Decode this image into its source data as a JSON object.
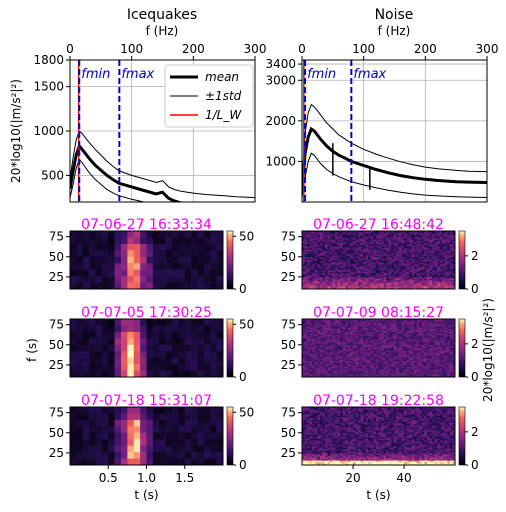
{
  "colors": {
    "mean": "#000000",
    "std": "#000000",
    "inv_lw": "#ff0000",
    "fbounds": "#0000cc",
    "timestamp": "#ff00ff",
    "grid": "#b0b0b0"
  },
  "chart_data": [
    {
      "type": "line",
      "panel": "icequakes-spectrum",
      "title": "Icequakes",
      "xlabel": "f (Hz)",
      "ylabel": "20*log10(|m/s²|²)",
      "xlim": [
        0,
        300
      ],
      "ylim": [
        200,
        1800
      ],
      "x_ticks": [
        0,
        100,
        200,
        300
      ],
      "y_ticks": [
        500,
        1000,
        1500,
        1800
      ],
      "grid": true,
      "legend_position": "top-right",
      "legend": [
        {
          "key": "mean",
          "label": "mean"
        },
        {
          "key": "std",
          "label": "±1std"
        },
        {
          "key": "inv_lw",
          "label": "1/L_W"
        }
      ],
      "fmin": 15,
      "fmin_label": "fmin",
      "fmax": 80,
      "fmax_label": "fmax",
      "inv_lw_x": 14,
      "x": [
        0,
        5,
        10,
        15,
        20,
        30,
        40,
        50,
        60,
        70,
        80,
        100,
        120,
        140,
        150,
        160,
        170,
        180,
        200,
        220,
        250,
        270,
        300
      ],
      "mean": [
        350,
        550,
        730,
        830,
        790,
        700,
        620,
        560,
        500,
        450,
        410,
        370,
        330,
        290,
        310,
        240,
        210,
        190,
        170,
        155,
        140,
        130,
        120
      ],
      "std_upper": [
        450,
        700,
        900,
        1000,
        970,
        880,
        800,
        730,
        660,
        600,
        550,
        500,
        460,
        420,
        440,
        370,
        340,
        320,
        300,
        285,
        270,
        260,
        250
      ],
      "std_lower": [
        250,
        400,
        580,
        680,
        640,
        540,
        460,
        400,
        340,
        300,
        270,
        230,
        200,
        170,
        180,
        130,
        110,
        90,
        75,
        60,
        50,
        40,
        30
      ]
    },
    {
      "type": "line",
      "panel": "noise-spectrum",
      "title": "Noise",
      "xlabel": "f (Hz)",
      "xlim": [
        0,
        300
      ],
      "ylim": [
        0,
        3500
      ],
      "x_ticks": [
        0,
        100,
        200,
        300
      ],
      "y_ticks": [
        1000,
        2000,
        3000,
        3400
      ],
      "grid": true,
      "fmin": 5,
      "fmin_label": "fmin",
      "fmax": 80,
      "fmax_label": "fmax",
      "inv_lw_x": 3,
      "x": [
        0,
        5,
        10,
        15,
        20,
        30,
        40,
        50,
        60,
        70,
        80,
        100,
        120,
        140,
        160,
        180,
        200,
        220,
        250,
        270,
        300
      ],
      "mean": [
        300,
        1200,
        1600,
        1800,
        1750,
        1550,
        1380,
        1250,
        1150,
        1080,
        1000,
        900,
        800,
        720,
        650,
        600,
        560,
        530,
        500,
        490,
        480
      ],
      "std_upper": [
        500,
        1700,
        2200,
        2400,
        2350,
        2150,
        1950,
        1800,
        1650,
        1550,
        1450,
        1300,
        1180,
        1080,
        990,
        920,
        860,
        820,
        780,
        760,
        750
      ],
      "std_lower": [
        100,
        600,
        1000,
        1200,
        1150,
        950,
        800,
        700,
        620,
        560,
        500,
        420,
        350,
        290,
        240,
        200,
        170,
        150,
        130,
        120,
        110
      ],
      "spikes": [
        {
          "x": 50,
          "top": 1450,
          "bottom": 650
        },
        {
          "x": 110,
          "top": 850,
          "bottom": 300
        }
      ]
    },
    {
      "type": "heatmap",
      "panel": "icequake-spectrogram",
      "title": "07-06-27 16:33:34",
      "ylabel": "",
      "y_ticks": [
        25,
        50,
        75
      ],
      "colorbar_ticks": [
        0,
        50
      ],
      "colorbar_range": [
        0,
        55
      ]
    },
    {
      "type": "heatmap",
      "panel": "icequake-spectrogram",
      "title": "07-07-05 17:30:25",
      "ylabel": "f (s)",
      "y_ticks": [
        25,
        50,
        75
      ],
      "colorbar_ticks": [
        0,
        50
      ],
      "colorbar_range": [
        0,
        55
      ]
    },
    {
      "type": "heatmap",
      "panel": "icequake-spectrogram",
      "title": "07-07-18 15:31:07",
      "xlabel": "t (s)",
      "x_ticks": [
        "0.5",
        "1.0",
        "1.5"
      ],
      "y_ticks": [
        25,
        50,
        75
      ],
      "colorbar_ticks": [
        0,
        50
      ],
      "colorbar_range": [
        0,
        55
      ]
    },
    {
      "type": "heatmap",
      "panel": "noise-spectrogram",
      "title": "07-06-27 16:48:42",
      "y_ticks": [
        25,
        50,
        75
      ],
      "colorbar_ticks": [
        0,
        2
      ],
      "colorbar_range": [
        0,
        3.5
      ]
    },
    {
      "type": "heatmap",
      "panel": "noise-spectrogram",
      "title": "07-07-09 08:15:27",
      "y_ticks": [
        25,
        50,
        75
      ],
      "colorbar_ticks": [
        0,
        2
      ],
      "colorbar_range": [
        0,
        3.5
      ],
      "colorbar_label": "20*log10(|m/s²|²)"
    },
    {
      "type": "heatmap",
      "panel": "noise-spectrogram",
      "title": "07-07-18 19:22:58",
      "xlabel": "t (s)",
      "x_ticks": [
        "20",
        "40"
      ],
      "y_ticks": [
        25,
        50,
        75
      ],
      "colorbar_ticks": [
        0,
        2
      ],
      "colorbar_range": [
        0,
        3.5
      ]
    }
  ]
}
